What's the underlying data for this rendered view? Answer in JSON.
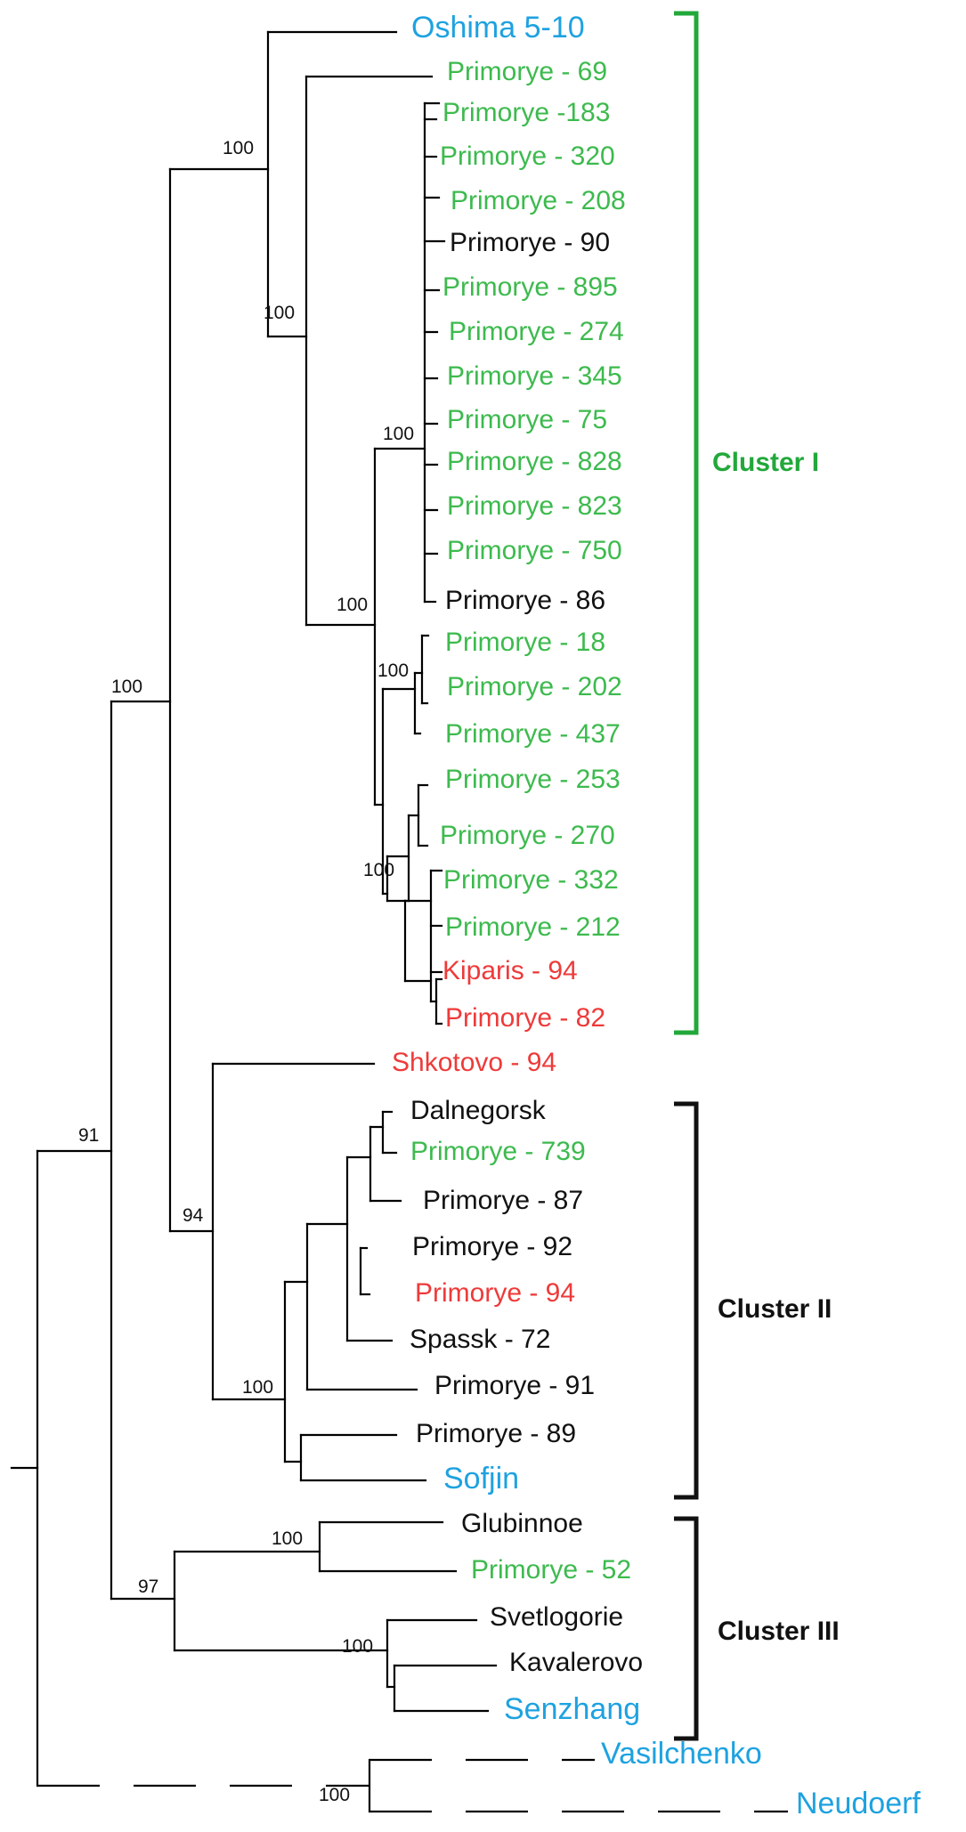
{
  "colors": {
    "black": "#111111",
    "green": "#3dba4e",
    "red": "#ee3a3a",
    "blue": "#1ea2e0",
    "cluster_i": "#22a83a",
    "line": "#000000"
  },
  "leaves": [
    {
      "label": "Oshima 5-10",
      "color": "blue"
    },
    {
      "label": "Primorye - 69",
      "color": "green"
    },
    {
      "label": "Primorye -183",
      "color": "green"
    },
    {
      "label": "Primorye - 320",
      "color": "green"
    },
    {
      "label": "Primorye - 208",
      "color": "green"
    },
    {
      "label": "Primorye - 90",
      "color": "black"
    },
    {
      "label": "Primorye - 895",
      "color": "green"
    },
    {
      "label": "Primorye - 274",
      "color": "green"
    },
    {
      "label": "Primorye - 345",
      "color": "green"
    },
    {
      "label": "Primorye - 75",
      "color": "green"
    },
    {
      "label": "Primorye - 828",
      "color": "green"
    },
    {
      "label": "Primorye - 823",
      "color": "green"
    },
    {
      "label": "Primorye - 750",
      "color": "green"
    },
    {
      "label": "Primorye - 86",
      "color": "black"
    },
    {
      "label": "Primorye - 18",
      "color": "green"
    },
    {
      "label": "Primorye - 202",
      "color": "green"
    },
    {
      "label": "Primorye - 437",
      "color": "green"
    },
    {
      "label": "Primorye - 253",
      "color": "green"
    },
    {
      "label": "Primorye - 270",
      "color": "green"
    },
    {
      "label": "Primorye - 332",
      "color": "green"
    },
    {
      "label": "Primorye - 212",
      "color": "green"
    },
    {
      "label": "Kiparis - 94",
      "color": "red"
    },
    {
      "label": "Primorye - 82",
      "color": "red"
    },
    {
      "label": "Shkotovo - 94",
      "color": "red"
    },
    {
      "label": "Dalnegorsk",
      "color": "black"
    },
    {
      "label": "Primorye - 739",
      "color": "green"
    },
    {
      "label": "Primorye - 87",
      "color": "black"
    },
    {
      "label": "Primorye - 92",
      "color": "black"
    },
    {
      "label": "Primorye - 94",
      "color": "red"
    },
    {
      "label": "Spassk - 72",
      "color": "black"
    },
    {
      "label": "Primorye - 91",
      "color": "black"
    },
    {
      "label": "Primorye - 89",
      "color": "black"
    },
    {
      "label": "Sofjin",
      "color": "blue"
    },
    {
      "label": "Glubinnoe",
      "color": "black"
    },
    {
      "label": "Primorye - 52",
      "color": "green"
    },
    {
      "label": "Svetlogorie",
      "color": "black"
    },
    {
      "label": "Kavalerovo",
      "color": "black"
    },
    {
      "label": "Senzhang",
      "color": "blue"
    },
    {
      "label": "Vasilchenko",
      "color": "blue"
    },
    {
      "label": "Neudoerf",
      "color": "blue"
    }
  ],
  "bootstrap_values": [
    "100",
    "100",
    "100",
    "100",
    "100",
    "100",
    "100",
    "91",
    "94",
    "100",
    "100",
    "97",
    "100",
    "100"
  ],
  "clusters": [
    {
      "label": "Cluster I",
      "color": "cluster_i"
    },
    {
      "label": "Cluster II",
      "color": "black"
    },
    {
      "label": "Cluster III",
      "color": "black"
    }
  ]
}
